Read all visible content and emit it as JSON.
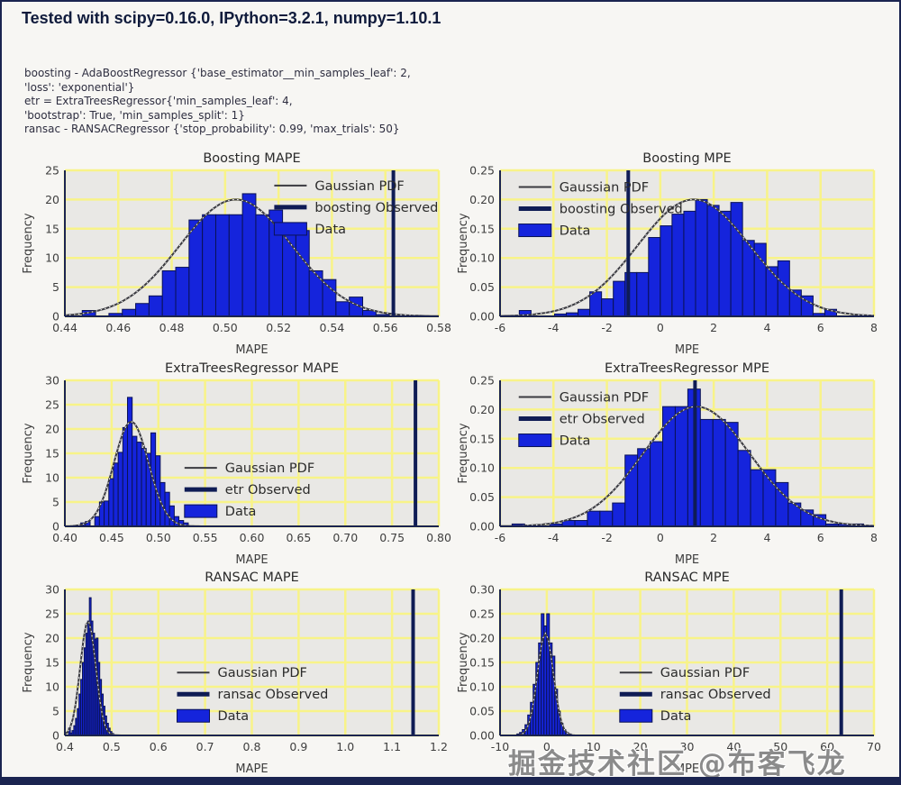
{
  "header": {
    "title": "Tested with scipy=0.16.0, IPython=3.2.1, numpy=1.10.1"
  },
  "params": [
    "boosting - AdaBoostRegressor {'base_estimator__min_samples_leaf': 2,",
    "'loss': 'exponential'}",
    "etr = ExtraTreesRegressor{'min_samples_leaf': 4,",
    "'bootstrap': True, 'min_samples_split': 1}",
    "ransac - RANSACRegressor {'stop_probability': 0.99, 'max_trials': 50}"
  ],
  "watermark": "掘金技术社区 @布客飞龙",
  "colors": {
    "bar_fill": "#1524dc",
    "bar_edge": "#0a1254",
    "plot_bg": "#e9e8e5",
    "grid": "#f8f388",
    "spine": "#1b2450",
    "curve": "#3a3a40",
    "curve_dots": "#ffffff",
    "observed": "#0f1c55",
    "page_border": "#1b2450",
    "header_text": "#101b3c"
  },
  "chart_data": [
    {
      "type": "bar",
      "title": "Boosting MAPE",
      "xlabel": "MAPE",
      "ylabel": "Frequency",
      "xlim": [
        0.44,
        0.58
      ],
      "ylim": [
        0,
        25
      ],
      "xtick_vals": [
        0.44,
        0.46,
        0.48,
        0.5,
        0.52,
        0.54,
        0.56,
        0.58
      ],
      "xtick_labels": [
        "0.44",
        "0.46",
        "0.48",
        "0.50",
        "0.52",
        "0.54",
        "0.56",
        "0.58"
      ],
      "ytick_vals": [
        0,
        5,
        10,
        15,
        20,
        25
      ],
      "ytick_labels": [
        "0",
        "5",
        "10",
        "15",
        "20",
        "25"
      ],
      "bins": {
        "start": 0.4465,
        "width": 0.005,
        "heights": [
          1.0,
          0,
          0.5,
          1.2,
          2.2,
          3.5,
          7.8,
          8.4,
          16.5,
          17.4,
          17.4,
          17.4,
          21.0,
          17.4,
          18.2,
          15.5,
          14.7,
          7.8,
          6.3,
          2.5,
          3.3,
          1.0,
          0.3
        ]
      },
      "gauss": {
        "mean": 0.504,
        "sigma": 0.021,
        "peak": 20
      },
      "observed": 0.563,
      "legend": {
        "labels": [
          "Gaussian PDF",
          "boosting Observed",
          "Data"
        ],
        "x": 0.56,
        "y": 0.055
      }
    },
    {
      "type": "bar",
      "title": "Boosting MPE",
      "xlabel": "MPE",
      "ylabel": "Frequency",
      "xlim": [
        -6,
        8
      ],
      "ylim": [
        0,
        0.25
      ],
      "xtick_vals": [
        -6,
        -4,
        -2,
        0,
        2,
        4,
        6,
        8
      ],
      "xtick_labels": [
        "-6",
        "-4",
        "-2",
        "0",
        "2",
        "4",
        "6",
        "8"
      ],
      "ytick_vals": [
        0,
        0.05,
        0.1,
        0.15,
        0.2,
        0.25
      ],
      "ytick_labels": [
        "0.00",
        "0.05",
        "0.10",
        "0.15",
        "0.20",
        "0.25"
      ],
      "bins": {
        "start": -5.28,
        "width": 0.44,
        "heights": [
          0.01,
          0,
          0,
          0.004,
          0.006,
          0.012,
          0.042,
          0.03,
          0.06,
          0.075,
          0.075,
          0.135,
          0.155,
          0.175,
          0.18,
          0.2,
          0.19,
          0.18,
          0.195,
          0.13,
          0.125,
          0.085,
          0.095,
          0.045,
          0.035,
          0.005,
          0.012
        ]
      },
      "gauss": {
        "mean": 1.25,
        "sigma": 2.1,
        "peak": 0.2
      },
      "observed": -1.2,
      "legend": {
        "labels": [
          "Gaussian PDF",
          "boosting Observed",
          "Data"
        ],
        "x": 0.05,
        "y": 0.065
      }
    },
    {
      "type": "bar",
      "title": "ExtraTreesRegressor MAPE",
      "xlabel": "MAPE",
      "ylabel": "Frequency",
      "xlim": [
        0.4,
        0.8
      ],
      "ylim": [
        0,
        30
      ],
      "xtick_vals": [
        0.4,
        0.45,
        0.5,
        0.55,
        0.6,
        0.65,
        0.7,
        0.75,
        0.8
      ],
      "xtick_labels": [
        "0.40",
        "0.45",
        "0.50",
        "0.55",
        "0.60",
        "0.65",
        "0.70",
        "0.75",
        "0.80"
      ],
      "ytick_vals": [
        0,
        5,
        10,
        15,
        20,
        25,
        30
      ],
      "ytick_labels": [
        "0",
        "5",
        "10",
        "15",
        "20",
        "25",
        "30"
      ],
      "bins": {
        "start": 0.417,
        "width": 0.005,
        "heights": [
          0.7,
          1.0,
          0,
          2.0,
          5.0,
          5.2,
          9.8,
          13.0,
          15.2,
          20.3,
          26.5,
          18.5,
          17.3,
          16.0,
          15.0,
          19.2,
          14.5,
          9.0,
          7.0,
          4.2,
          2.0,
          1.2,
          0.7
        ]
      },
      "gauss": {
        "mean": 0.471,
        "sigma": 0.0185,
        "peak": 21.5
      },
      "observed": 0.775,
      "legend": {
        "labels": [
          "Gaussian PDF",
          "etr Observed",
          "Data"
        ],
        "x": 0.32,
        "y": 0.55
      }
    },
    {
      "type": "bar",
      "title": "ExtraTreesRegressor MPE",
      "xlabel": "MPE",
      "ylabel": "Frequency",
      "xlim": [
        -6,
        8
      ],
      "ylim": [
        0,
        0.25
      ],
      "xtick_vals": [
        -6,
        -4,
        -2,
        0,
        2,
        4,
        6,
        8
      ],
      "xtick_labels": [
        "-6",
        "-4",
        "-2",
        "0",
        "2",
        "4",
        "6",
        "8"
      ],
      "ytick_vals": [
        0,
        0.05,
        0.1,
        0.15,
        0.2,
        0.25
      ],
      "ytick_labels": [
        "0.00",
        "0.05",
        "0.10",
        "0.15",
        "0.20",
        "0.25"
      ],
      "bins": {
        "start": -5.55,
        "width": 0.47,
        "heights": [
          0.004,
          0,
          0,
          0.004,
          0.01,
          0.01,
          0.026,
          0.026,
          0.04,
          0.122,
          0.133,
          0.145,
          0.205,
          0.205,
          0.235,
          0.183,
          0.183,
          0.178,
          0.13,
          0.097,
          0.097,
          0.075,
          0.04,
          0.028,
          0.02,
          0.004,
          0.004,
          0.004
        ]
      },
      "gauss": {
        "mean": 1.35,
        "sigma": 2.0,
        "peak": 0.205
      },
      "observed": 1.3,
      "legend": {
        "labels": [
          "Gaussian PDF",
          "etr Observed",
          "Data"
        ],
        "x": 0.05,
        "y": 0.065
      }
    },
    {
      "type": "bar",
      "title": "RANSAC MAPE",
      "xlabel": "MAPE",
      "ylabel": "Frequency",
      "xlim": [
        0.4,
        1.2
      ],
      "ylim": [
        0,
        30
      ],
      "xtick_vals": [
        0.4,
        0.5,
        0.6,
        0.7,
        0.8,
        0.9,
        1.0,
        1.1,
        1.2
      ],
      "xtick_labels": [
        "0.4",
        "0.5",
        "0.6",
        "0.7",
        "0.8",
        "0.9",
        "1.0",
        "1.1",
        "1.2"
      ],
      "ytick_vals": [
        0,
        5,
        10,
        15,
        20,
        25,
        30
      ],
      "ytick_labels": [
        "0",
        "5",
        "10",
        "15",
        "20",
        "25",
        "30"
      ],
      "bins": {
        "start": 0.408,
        "width": 0.0037,
        "heights": [
          1.5,
          0.5,
          1.0,
          2.0,
          3.5,
          5.5,
          8.5,
          11.5,
          15.0,
          18.0,
          21.0,
          23.5,
          28.3,
          23.5,
          21.0,
          19.8,
          20.0,
          15.0,
          11.5,
          8.5,
          6.0,
          4.0,
          2.5,
          1.5,
          0.8,
          0.4
        ]
      },
      "gauss": {
        "mean": 0.4495,
        "sigma": 0.0165,
        "peak": 23.5
      },
      "observed": 1.145,
      "legend": {
        "labels": [
          "Gaussian PDF",
          "ransac Observed",
          "Data"
        ],
        "x": 0.3,
        "y": 0.52
      }
    },
    {
      "type": "bar",
      "title": "RANSAC MPE",
      "xlabel": "MPE",
      "ylabel": "Frequency",
      "xlim": [
        -10,
        70
      ],
      "ylim": [
        0,
        0.3
      ],
      "xtick_vals": [
        -10,
        0,
        10,
        20,
        30,
        40,
        50,
        60,
        70
      ],
      "xtick_labels": [
        "-10",
        "0",
        "10",
        "20",
        "30",
        "40",
        "50",
        "60",
        "70"
      ],
      "ytick_vals": [
        0,
        0.05,
        0.1,
        0.15,
        0.2,
        0.25,
        0.3
      ],
      "ytick_labels": [
        "0.00",
        "0.05",
        "0.10",
        "0.15",
        "0.20",
        "0.25",
        "0.30"
      ],
      "bins": {
        "start": -6.4,
        "width": 0.58,
        "heights": [
          0.003,
          0.006,
          0.012,
          0.022,
          0.042,
          0.068,
          0.105,
          0.15,
          0.19,
          0.25,
          0.225,
          0.25,
          0.19,
          0.163,
          0.095,
          0.05,
          0.025,
          0.012,
          0.006,
          0.003
        ]
      },
      "gauss": {
        "mean": -0.3,
        "sigma": 1.7,
        "peak": 0.21
      },
      "observed": 63,
      "legend": {
        "labels": [
          "Gaussian PDF",
          "ransac Observed",
          "Data"
        ],
        "x": 0.32,
        "y": 0.52
      }
    }
  ]
}
